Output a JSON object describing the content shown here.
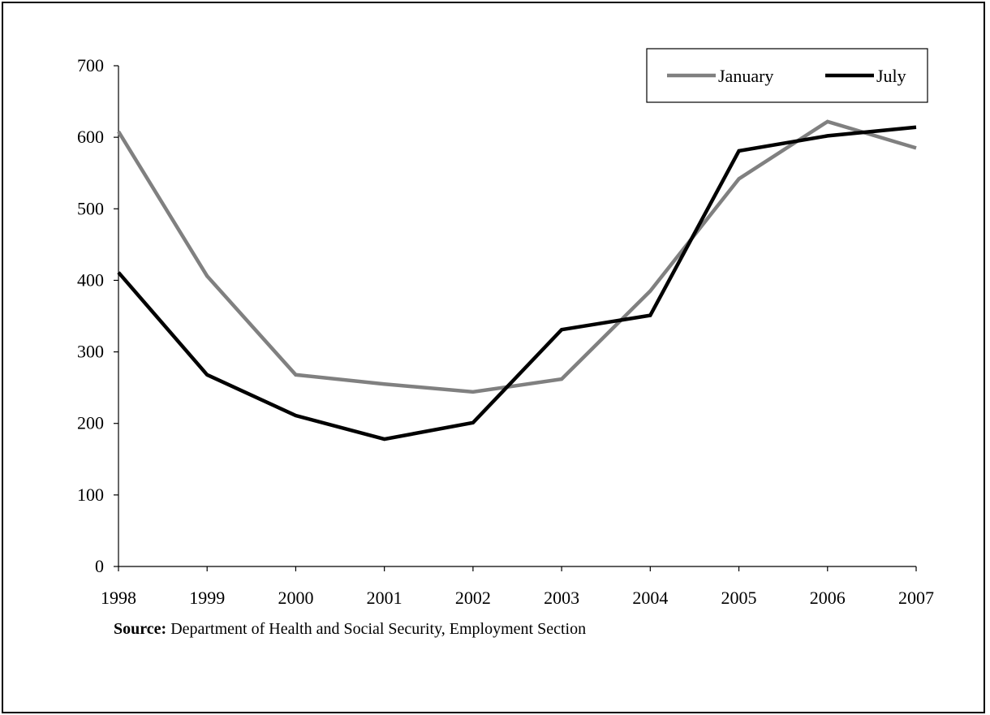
{
  "chart_data": {
    "type": "line",
    "title": "",
    "xlabel": "",
    "ylabel": "",
    "x": [
      "1998",
      "1999",
      "2000",
      "2001",
      "2002",
      "2003",
      "2004",
      "2005",
      "2006",
      "2007"
    ],
    "ylim": [
      0,
      700
    ],
    "yticks": [
      0,
      100,
      200,
      300,
      400,
      500,
      600,
      700
    ],
    "grid": false,
    "legend_position": "top-right",
    "series": [
      {
        "name": "January",
        "color": "#808080",
        "values": [
          608,
          406,
          268,
          255,
          244,
          262,
          385,
          542,
          622,
          585
        ]
      },
      {
        "name": "July",
        "color": "#000000",
        "values": [
          411,
          268,
          211,
          178,
          201,
          331,
          351,
          581,
          602,
          614
        ]
      }
    ]
  },
  "source": {
    "label": "Source:",
    "text": "Department of Health and Social Security, Employment Section"
  }
}
